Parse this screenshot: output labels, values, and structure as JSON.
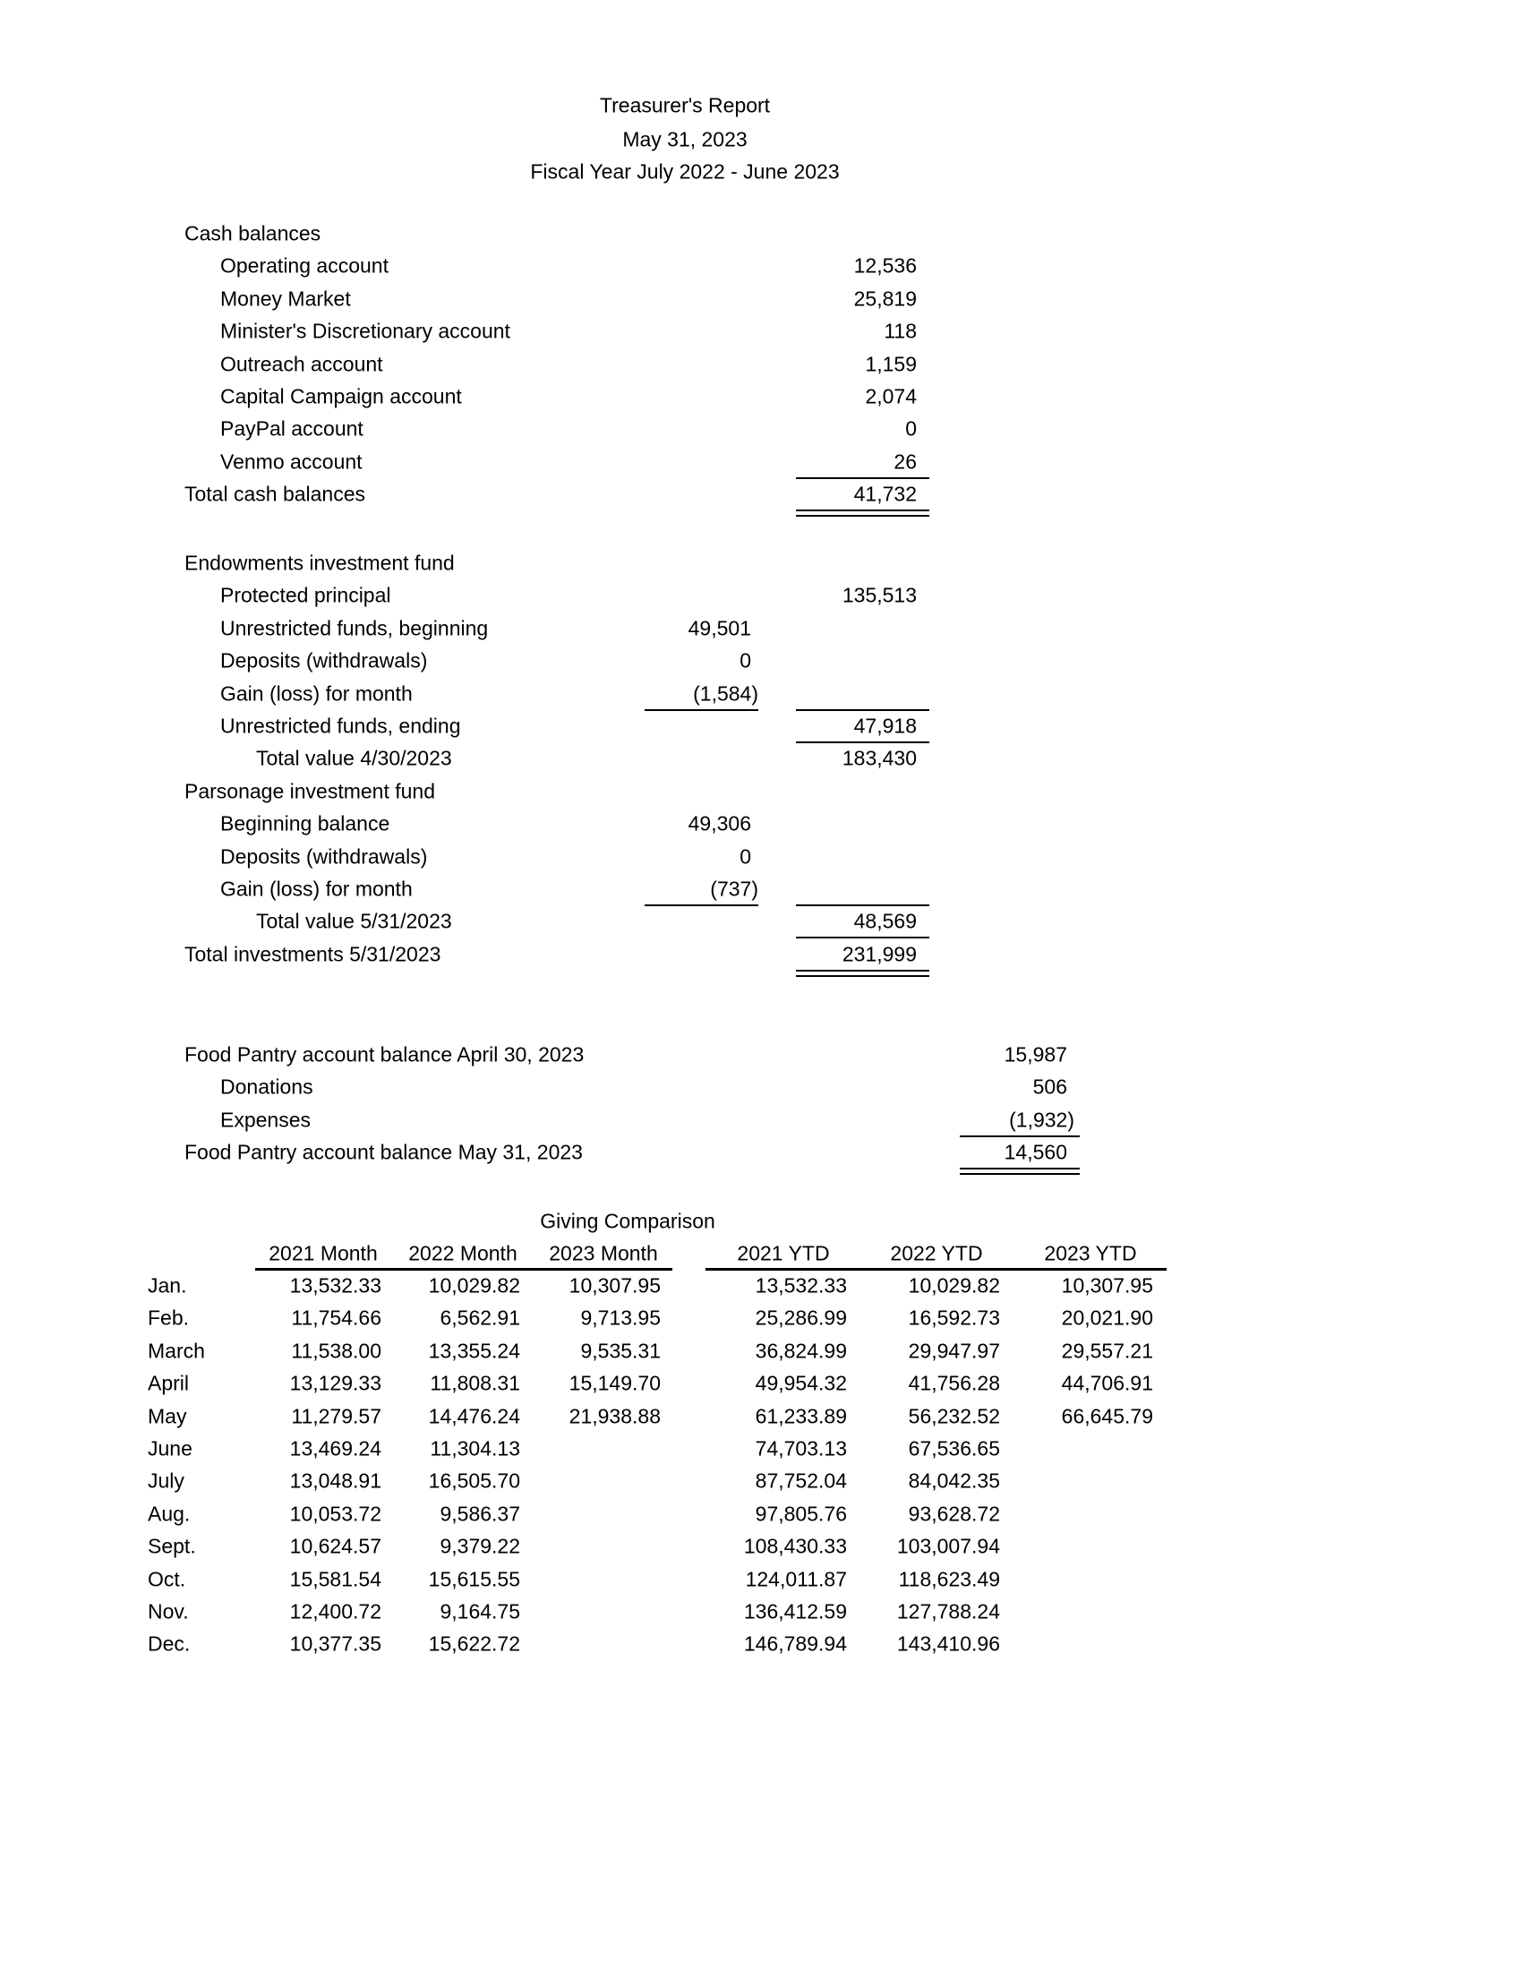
{
  "header": {
    "title": "Treasurer's Report",
    "date": "May 31, 2023",
    "fiscal_year": "Fiscal Year July 2022 - June 2023"
  },
  "cash": {
    "heading": "Cash balances",
    "items": [
      {
        "label": "Operating account",
        "value": "12,536"
      },
      {
        "label": "Money Market",
        "value": "25,819"
      },
      {
        "label": "Minister's Discretionary account",
        "value": "118"
      },
      {
        "label": "Outreach account",
        "value": "1,159"
      },
      {
        "label": "Capital Campaign account",
        "value": "2,074"
      },
      {
        "label": "PayPal account",
        "value": "0"
      },
      {
        "label": "Venmo account",
        "value": "26"
      }
    ],
    "total_label": "Total cash balances",
    "total_value": "41,732"
  },
  "endowments": {
    "heading": "Endowments investment fund",
    "protected_label": "Protected principal",
    "protected_value": "135,513",
    "beginning_label": "Unrestricted funds, beginning",
    "beginning_value": "49,501",
    "deposits_label": "Deposits (withdrawals)",
    "deposits_value": "0",
    "gain_label": "Gain (loss) for month",
    "gain_value": "(1,584)",
    "ending_label": "Unrestricted funds, ending",
    "ending_value": "47,918",
    "total_label": "Total value 4/30/2023",
    "total_value": "183,430"
  },
  "parsonage": {
    "heading": "Parsonage investment fund",
    "beginning_label": "Beginning balance",
    "beginning_value": "49,306",
    "deposits_label": "Deposits (withdrawals)",
    "deposits_value": "0",
    "gain_label": "Gain (loss) for month",
    "gain_value": "(737)",
    "total_label": "Total value 5/31/2023",
    "total_value": "48,569"
  },
  "investments_total": {
    "label": "Total investments 5/31/2023",
    "value": "231,999"
  },
  "food_pantry": {
    "opening_label": "Food Pantry account balance April 30, 2023",
    "opening_value": "15,987",
    "donations_label": "Donations",
    "donations_value": "506",
    "expenses_label": "Expenses",
    "expenses_value": "(1,932)",
    "closing_label": "Food Pantry account balance May 31, 2023",
    "closing_value": "14,560"
  },
  "giving": {
    "title": "Giving Comparison",
    "columns": [
      "2021 Month",
      "2022 Month",
      "2023 Month",
      "2021 YTD",
      "2022 YTD",
      "2023 YTD"
    ],
    "rows": [
      {
        "month": "Jan.",
        "values": [
          "13,532.33",
          "10,029.82",
          "10,307.95",
          "13,532.33",
          "10,029.82",
          "10,307.95"
        ]
      },
      {
        "month": "Feb.",
        "values": [
          "11,754.66",
          "6,562.91",
          "9,713.95",
          "25,286.99",
          "16,592.73",
          "20,021.90"
        ]
      },
      {
        "month": "March",
        "values": [
          "11,538.00",
          "13,355.24",
          "9,535.31",
          "36,824.99",
          "29,947.97",
          "29,557.21"
        ]
      },
      {
        "month": "April",
        "values": [
          "13,129.33",
          "11,808.31",
          "15,149.70",
          "49,954.32",
          "41,756.28",
          "44,706.91"
        ]
      },
      {
        "month": "May",
        "values": [
          "11,279.57",
          "14,476.24",
          "21,938.88",
          "61,233.89",
          "56,232.52",
          "66,645.79"
        ]
      },
      {
        "month": "June",
        "values": [
          "13,469.24",
          "11,304.13",
          "",
          "74,703.13",
          "67,536.65",
          ""
        ]
      },
      {
        "month": "July",
        "values": [
          "13,048.91",
          "16,505.70",
          "",
          "87,752.04",
          "84,042.35",
          ""
        ]
      },
      {
        "month": "Aug.",
        "values": [
          "10,053.72",
          "9,586.37",
          "",
          "97,805.76",
          "93,628.72",
          ""
        ]
      },
      {
        "month": "Sept.",
        "values": [
          "10,624.57",
          "9,379.22",
          "",
          "108,430.33",
          "103,007.94",
          ""
        ]
      },
      {
        "month": "Oct.",
        "values": [
          "15,581.54",
          "15,615.55",
          "",
          "124,011.87",
          "118,623.49",
          ""
        ]
      },
      {
        "month": "Nov.",
        "values": [
          "12,400.72",
          "9,164.75",
          "",
          "136,412.59",
          "127,788.24",
          ""
        ]
      },
      {
        "month": "Dec.",
        "values": [
          "10,377.35",
          "15,622.72",
          "",
          "146,789.94",
          "143,410.96",
          ""
        ]
      }
    ]
  }
}
